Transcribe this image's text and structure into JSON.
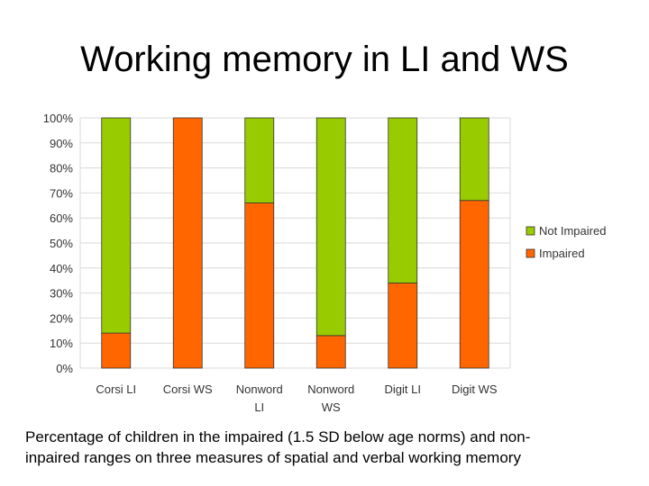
{
  "slide": {
    "title": "Working memory in LI and WS",
    "caption_line1": "Percentage of children in the impaired (1.5 SD below age norms) and non-",
    "caption_line2": "inpaired ranges on three measures of spatial and verbal working memory"
  },
  "colors": {
    "not_impaired": "#99cc00",
    "impaired": "#ff6600",
    "bar_stroke": "#333333",
    "grid": "#d9d9d9",
    "axis_text": "#333333"
  },
  "chart_data": {
    "type": "bar",
    "stacked": true,
    "title": "",
    "xlabel": "",
    "ylabel": "",
    "ylim": [
      0,
      100
    ],
    "yticks": [
      0,
      10,
      20,
      30,
      40,
      50,
      60,
      70,
      80,
      90,
      100
    ],
    "ytick_labels": [
      "0%",
      "10%",
      "20%",
      "30%",
      "40%",
      "50%",
      "60%",
      "70%",
      "80%",
      "90%",
      "100%"
    ],
    "grid": true,
    "legend_position": "right",
    "categories": [
      [
        "Corsi LI"
      ],
      [
        "Corsi WS"
      ],
      [
        "Nonword",
        "LI"
      ],
      [
        "Nonword",
        "WS"
      ],
      [
        "Digit LI"
      ],
      [
        "Digit WS"
      ]
    ],
    "series": [
      {
        "name": "Impaired",
        "values": [
          14,
          100,
          66,
          13,
          34,
          67
        ]
      },
      {
        "name": "Not Impaired",
        "values": [
          86,
          0,
          34,
          87,
          66,
          33
        ]
      }
    ],
    "legend": [
      "Not Impaired",
      "Impaired"
    ]
  }
}
